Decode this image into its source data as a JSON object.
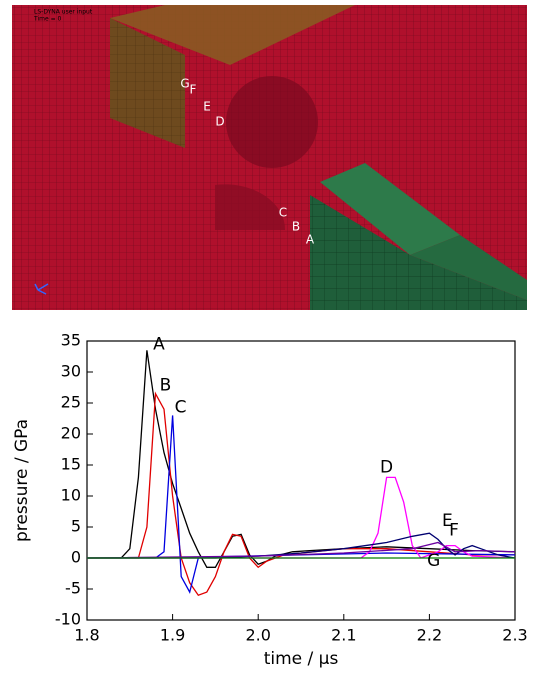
{
  "render": {
    "caption": [
      "LS-DYNA user input",
      "Time = 0"
    ],
    "point_labels": [
      "G",
      "F",
      "E",
      "D",
      "C",
      "B",
      "A"
    ]
  },
  "chart_data": {
    "type": "line",
    "xlabel": "time / μs",
    "ylabel": "pressure / GPa",
    "xlim": [
      1.8,
      2.3
    ],
    "xticks": [
      1.8,
      1.9,
      {
        "value": 2,
        "label": "2.0"
      },
      2.1,
      2.2,
      2.3
    ],
    "ylim": [
      -10,
      35
    ],
    "yticks": [
      -10,
      -5,
      0,
      5,
      10,
      15,
      20,
      25,
      30,
      35
    ],
    "series": [
      {
        "name": "A",
        "color": "#000000",
        "x": [
          1.8,
          1.84,
          1.85,
          1.86,
          1.87,
          1.88,
          1.89,
          1.9,
          1.91,
          1.92,
          1.93,
          1.94,
          1.95,
          1.96,
          1.97,
          1.98,
          1.99,
          2.0,
          2.01,
          2.02,
          2.04,
          2.06,
          2.1,
          2.15,
          2.2,
          2.25,
          2.3
        ],
        "values": [
          0,
          0,
          1.5,
          13,
          33.5,
          24,
          17,
          12,
          8,
          4,
          1,
          -1.5,
          -1.5,
          1,
          3.5,
          3.8,
          0.5,
          -1,
          -0.5,
          0.3,
          1,
          1.2,
          1.5,
          1.8,
          1.5,
          1.2,
          1
        ]
      },
      {
        "name": "B",
        "color": "#e00000",
        "x": [
          1.8,
          1.86,
          1.87,
          1.88,
          1.89,
          1.9,
          1.91,
          1.92,
          1.93,
          1.94,
          1.95,
          1.96,
          1.97,
          1.98,
          1.99,
          2.0,
          2.01,
          2.03,
          2.1,
          2.15,
          2.2,
          2.25,
          2.3
        ],
        "values": [
          0,
          0,
          5,
          26.5,
          24,
          10,
          0,
          -4,
          -6,
          -5.5,
          -3,
          1,
          3.8,
          3.5,
          0,
          -1.5,
          -0.5,
          0.5,
          1.5,
          1.5,
          1,
          0.5,
          0.5
        ]
      },
      {
        "name": "C",
        "color": "#0000e0",
        "x": [
          1.8,
          1.88,
          1.89,
          1.9,
          1.91,
          1.92,
          1.93,
          1.95,
          2.05,
          2.15,
          2.3
        ],
        "values": [
          0,
          0,
          1,
          23,
          -3,
          -5.5,
          0,
          0.2,
          0.5,
          0.8,
          0.5
        ]
      },
      {
        "name": "D",
        "color": "#ff00ff",
        "x": [
          1.8,
          2.12,
          2.13,
          2.14,
          2.15,
          2.16,
          2.17,
          2.18,
          2.19,
          2.2,
          2.21,
          2.22,
          2.23,
          2.24,
          2.25,
          2.3
        ],
        "values": [
          0,
          0,
          1,
          4,
          13,
          13,
          9,
          2,
          0,
          0.5,
          1,
          2,
          2,
          1,
          0.3,
          0
        ]
      },
      {
        "name": "E",
        "color": "#000070",
        "x": [
          1.8,
          1.95,
          2.0,
          2.05,
          2.1,
          2.15,
          2.18,
          2.2,
          2.21,
          2.22,
          2.23,
          2.24,
          2.25,
          2.26,
          2.28,
          2.3
        ],
        "values": [
          0,
          0,
          0.3,
          0.8,
          1.5,
          2.5,
          3.5,
          4,
          3,
          1.5,
          0.5,
          1.5,
          2,
          1.5,
          0.5,
          0
        ]
      },
      {
        "name": "F",
        "color": "#6a00a0",
        "x": [
          1.8,
          2.0,
          2.1,
          2.18,
          2.21,
          2.23,
          2.26,
          2.3
        ],
        "values": [
          0,
          0.3,
          0.8,
          1.5,
          2.5,
          1,
          1.2,
          1
        ]
      },
      {
        "name": "G",
        "color": "#008000",
        "x": [
          1.8,
          2.3
        ],
        "values": [
          0,
          0
        ]
      }
    ]
  }
}
